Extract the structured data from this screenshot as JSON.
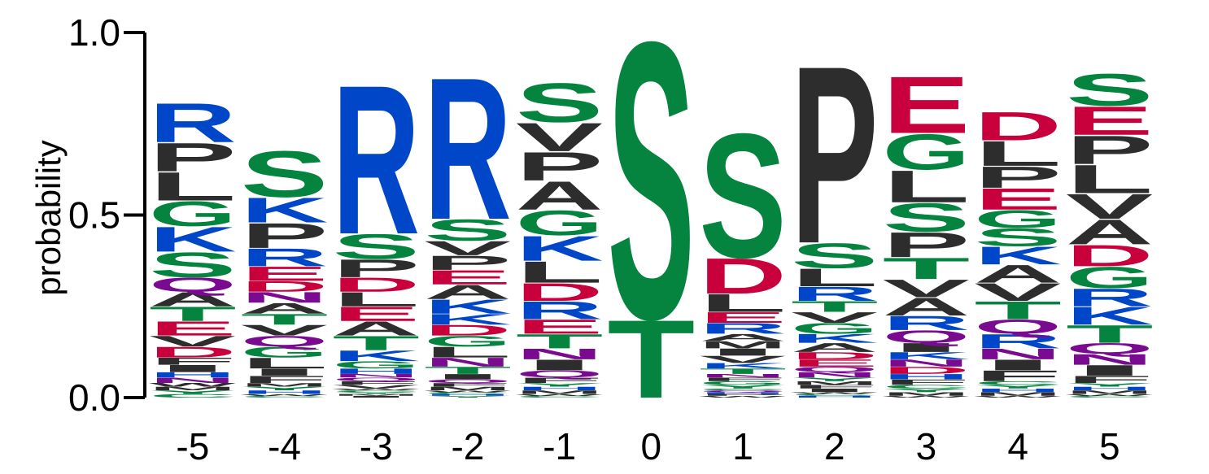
{
  "chart_data": {
    "type": "sequence-logo",
    "title": "",
    "ylabel": "probability",
    "xlabel": "",
    "ylim": [
      0,
      1
    ],
    "yticks": [
      "0.0",
      "0.5",
      "1.0"
    ],
    "positions": [
      "-5",
      "-4",
      "-3",
      "-2",
      "-1",
      "0",
      "1",
      "2",
      "3",
      "4",
      "5"
    ],
    "colors": {
      "basic": "#0046c8",
      "polar": "#05843f",
      "acidic": "#c8003c",
      "hydrophobic": "#2d2d2d",
      "amide": "#7a0a90"
    },
    "color_groups": {
      "basic": [
        "R",
        "K",
        "H"
      ],
      "polar": [
        "S",
        "T",
        "G",
        "Y",
        "C"
      ],
      "acidic": [
        "E",
        "D"
      ],
      "hydrophobic": [
        "P",
        "L",
        "A",
        "V",
        "I",
        "M",
        "F",
        "W"
      ],
      "amide": [
        "Q",
        "N"
      ]
    },
    "columns": [
      [
        [
          "R",
          0.11
        ],
        [
          "S",
          0.07
        ],
        [
          "L",
          0.08
        ],
        [
          "P",
          0.08
        ],
        [
          "K",
          0.07
        ],
        [
          "G",
          0.07
        ],
        [
          "E",
          0.04
        ],
        [
          "T",
          0.04
        ],
        [
          "A",
          0.04
        ],
        [
          "Q",
          0.04
        ],
        [
          "D",
          0.03
        ],
        [
          "V",
          0.03
        ],
        [
          "I",
          0.02
        ],
        [
          "F",
          0.02
        ],
        [
          "N",
          0.015
        ],
        [
          "H",
          0.015
        ],
        [
          "C",
          0.01
        ],
        [
          "Y",
          0.01
        ],
        [
          "M",
          0.01
        ],
        [
          "W",
          0.01
        ]
      ],
      [
        [
          "S",
          0.13
        ],
        [
          "P",
          0.07
        ],
        [
          "K",
          0.07
        ],
        [
          "R",
          0.05
        ],
        [
          "E",
          0.04
        ],
        [
          "L",
          0.03
        ],
        [
          "G",
          0.03
        ],
        [
          "Q",
          0.03
        ],
        [
          "V",
          0.03
        ],
        [
          "T",
          0.03
        ],
        [
          "A",
          0.03
        ],
        [
          "N",
          0.03
        ],
        [
          "D",
          0.03
        ],
        [
          "F",
          0.02
        ],
        [
          "I",
          0.02
        ],
        [
          "H",
          0.01
        ],
        [
          "Y",
          0.01
        ],
        [
          "M",
          0.01
        ],
        [
          "C",
          0.005
        ],
        [
          "W",
          0.005
        ]
      ],
      [
        [
          "R",
          0.42
        ],
        [
          "S",
          0.07
        ],
        [
          "P",
          0.05
        ],
        [
          "T",
          0.04
        ],
        [
          "A",
          0.04
        ],
        [
          "E",
          0.04
        ],
        [
          "L",
          0.04
        ],
        [
          "D",
          0.04
        ],
        [
          "K",
          0.03
        ],
        [
          "G",
          0.02
        ],
        [
          "H",
          0.015
        ],
        [
          "V",
          0.01
        ],
        [
          "F",
          0.01
        ],
        [
          "Q",
          0.01
        ],
        [
          "N",
          0.01
        ],
        [
          "I",
          0.005
        ],
        [
          "M",
          0.005
        ],
        [
          "Y",
          0.005
        ],
        [
          "C",
          0.005
        ],
        [
          "W",
          0.005
        ]
      ],
      [
        [
          "R",
          0.4
        ],
        [
          "S",
          0.06
        ],
        [
          "K",
          0.04
        ],
        [
          "A",
          0.04
        ],
        [
          "E",
          0.04
        ],
        [
          "P",
          0.04
        ],
        [
          "V",
          0.04
        ],
        [
          "L",
          0.03
        ],
        [
          "G",
          0.03
        ],
        [
          "D",
          0.03
        ],
        [
          "K",
          0.03
        ],
        [
          "N",
          0.025
        ],
        [
          "T",
          0.02
        ],
        [
          "I",
          0.015
        ],
        [
          "M",
          0.01
        ],
        [
          "F",
          0.01
        ],
        [
          "Q",
          0.01
        ],
        [
          "Y",
          0.005
        ],
        [
          "H",
          0.005
        ],
        [
          "C",
          0.005
        ],
        [
          "W",
          0.005
        ]
      ],
      [
        [
          "S",
          0.11
        ],
        [
          "A",
          0.08
        ],
        [
          "P",
          0.08
        ],
        [
          "V",
          0.08
        ],
        [
          "K",
          0.07
        ],
        [
          "G",
          0.07
        ],
        [
          "L",
          0.06
        ],
        [
          "R",
          0.05
        ],
        [
          "D",
          0.05
        ],
        [
          "T",
          0.04
        ],
        [
          "E",
          0.04
        ],
        [
          "I",
          0.03
        ],
        [
          "N",
          0.03
        ],
        [
          "Q",
          0.02
        ],
        [
          "F",
          0.015
        ],
        [
          "M",
          0.01
        ],
        [
          "H",
          0.01
        ],
        [
          "Y",
          0.01
        ],
        [
          "C",
          0.005
        ],
        [
          "W",
          0.005
        ]
      ],
      [
        [
          "S",
          0.78
        ],
        [
          "T",
          0.22
        ]
      ],
      [
        [
          "S",
          0.35
        ],
        [
          "D",
          0.1
        ],
        [
          "L",
          0.05
        ],
        [
          "R",
          0.03
        ],
        [
          "E",
          0.03
        ],
        [
          "V",
          0.02
        ],
        [
          "I",
          0.02
        ],
        [
          "M",
          0.02
        ],
        [
          "A",
          0.02
        ],
        [
          "T",
          0.015
        ],
        [
          "K",
          0.015
        ],
        [
          "Y",
          0.01
        ],
        [
          "G",
          0.01
        ],
        [
          "F",
          0.01
        ],
        [
          "N",
          0.01
        ],
        [
          "W",
          0.005
        ],
        [
          "P",
          0.005
        ],
        [
          "H",
          0.005
        ],
        [
          "Q",
          0.005
        ],
        [
          "C",
          0.005
        ]
      ],
      [
        [
          "P",
          0.5
        ],
        [
          "S",
          0.07
        ],
        [
          "L",
          0.05
        ],
        [
          "R",
          0.04
        ],
        [
          "G",
          0.03
        ],
        [
          "V",
          0.03
        ],
        [
          "T",
          0.03
        ],
        [
          "A",
          0.025
        ],
        [
          "K",
          0.025
        ],
        [
          "E",
          0.02
        ],
        [
          "D",
          0.02
        ],
        [
          "N",
          0.015
        ],
        [
          "Q",
          0.015
        ],
        [
          "I",
          0.01
        ],
        [
          "F",
          0.01
        ],
        [
          "M",
          0.01
        ],
        [
          "Y",
          0.01
        ],
        [
          "H",
          0.005
        ],
        [
          "C",
          0.005
        ],
        [
          "W",
          0.005
        ]
      ],
      [
        [
          "E",
          0.16
        ],
        [
          "G",
          0.1
        ],
        [
          "L",
          0.09
        ],
        [
          "S",
          0.08
        ],
        [
          "P",
          0.07
        ],
        [
          "T",
          0.06
        ],
        [
          "A",
          0.05
        ],
        [
          "V",
          0.05
        ],
        [
          "R",
          0.04
        ],
        [
          "Q",
          0.035
        ],
        [
          "I",
          0.025
        ],
        [
          "D",
          0.02
        ],
        [
          "N",
          0.02
        ],
        [
          "K",
          0.02
        ],
        [
          "F",
          0.015
        ],
        [
          "H",
          0.015
        ],
        [
          "M",
          0.01
        ],
        [
          "Y",
          0.01
        ],
        [
          "C",
          0.01
        ],
        [
          "W",
          0.005
        ]
      ],
      [
        [
          "E",
          0.06
        ],
        [
          "D",
          0.08
        ],
        [
          "P",
          0.06
        ],
        [
          "T",
          0.05
        ],
        [
          "L",
          0.07
        ],
        [
          "V",
          0.05
        ],
        [
          "A",
          0.05
        ],
        [
          "R",
          0.04
        ],
        [
          "K",
          0.05
        ],
        [
          "S",
          0.05
        ],
        [
          "G",
          0.05
        ],
        [
          "Q",
          0.04
        ],
        [
          "F",
          0.03
        ],
        [
          "I",
          0.03
        ],
        [
          "N",
          0.03
        ],
        [
          "M",
          0.01
        ],
        [
          "H",
          0.01
        ],
        [
          "Y",
          0.01
        ],
        [
          "C",
          0.01
        ],
        [
          "W",
          0.005
        ]
      ],
      [
        [
          "S",
          0.09
        ],
        [
          "L",
          0.08
        ],
        [
          "P",
          0.08
        ],
        [
          "E",
          0.08
        ],
        [
          "A",
          0.07
        ],
        [
          "V",
          0.07
        ],
        [
          "T",
          0.05
        ],
        [
          "G",
          0.06
        ],
        [
          "D",
          0.06
        ],
        [
          "K",
          0.05
        ],
        [
          "R",
          0.05
        ],
        [
          "I",
          0.03
        ],
        [
          "N",
          0.03
        ],
        [
          "Q",
          0.03
        ],
        [
          "F",
          0.02
        ],
        [
          "M",
          0.01
        ],
        [
          "H",
          0.01
        ],
        [
          "Y",
          0.01
        ],
        [
          "C",
          0.005
        ],
        [
          "W",
          0.005
        ]
      ]
    ]
  }
}
